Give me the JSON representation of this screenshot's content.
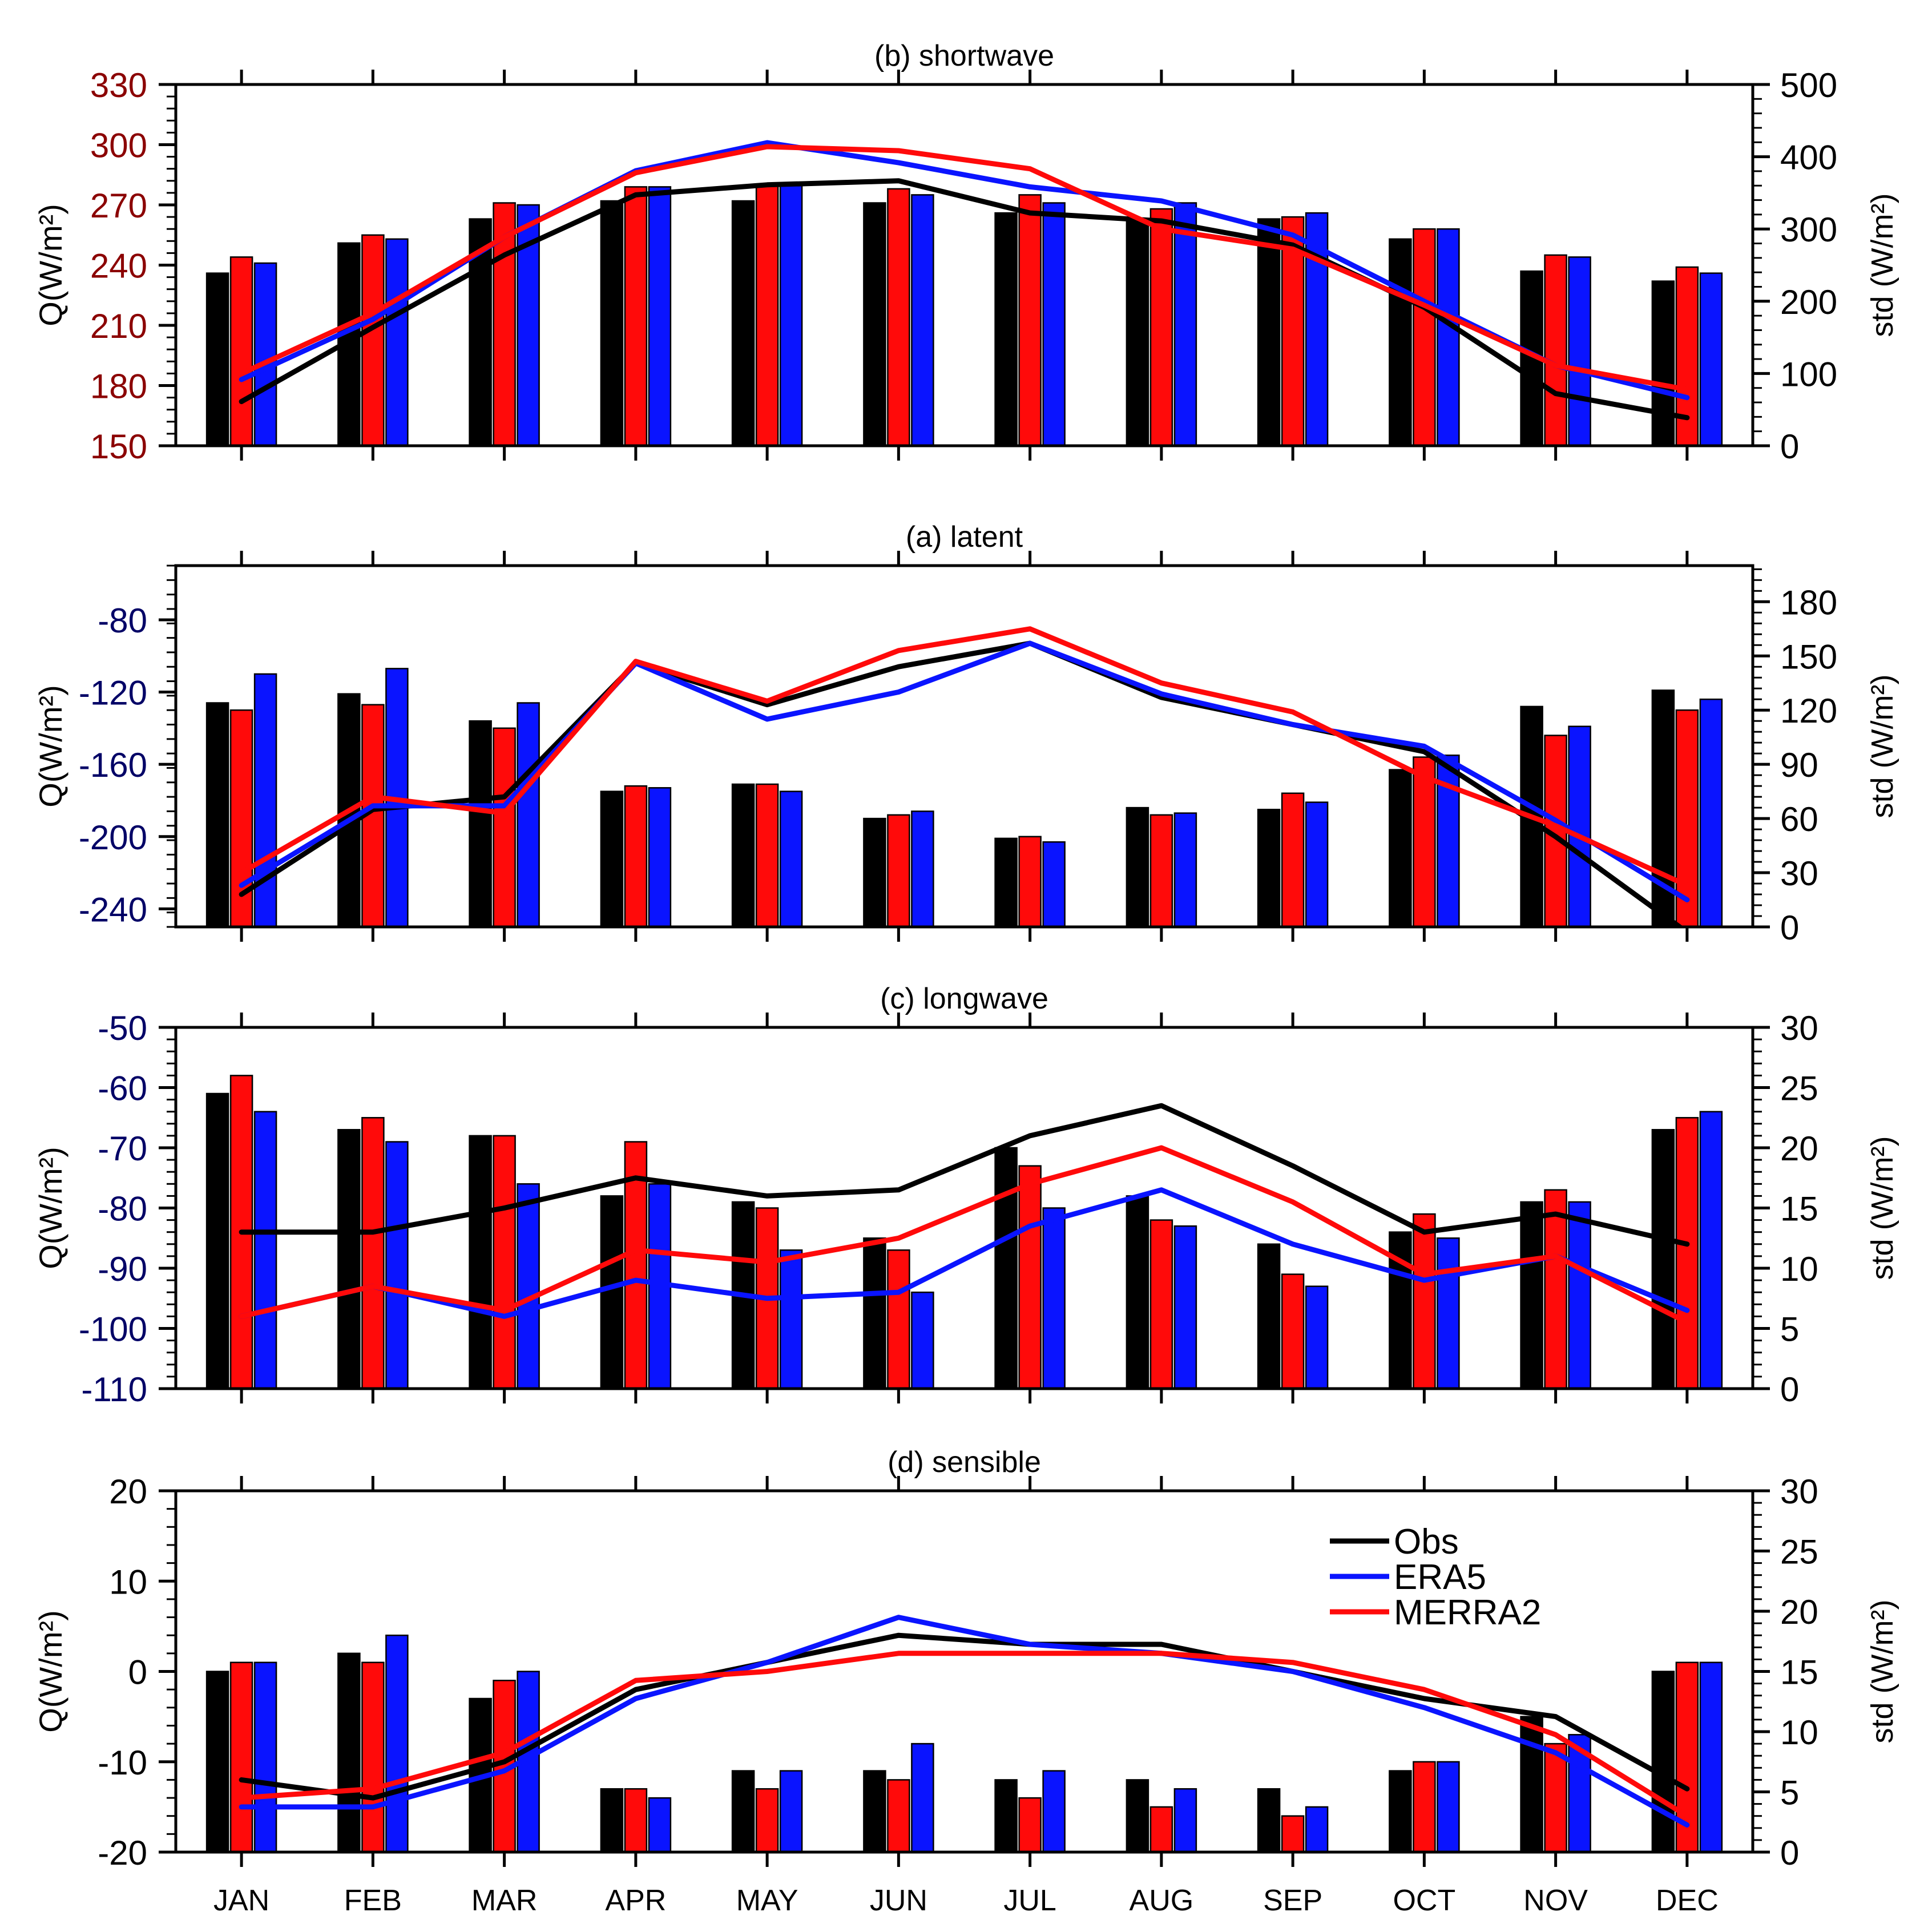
{
  "months": [
    "JAN",
    "FEB",
    "MAR",
    "APR",
    "MAY",
    "JUN",
    "JUL",
    "AUG",
    "SEP",
    "OCT",
    "NOV",
    "DEC"
  ],
  "legend": [
    {
      "label": "Obs",
      "color": "#000000"
    },
    {
      "label": "ERA5",
      "color": "#0a14ff"
    },
    {
      "label": "MERRA2",
      "color": "#ff0a0a"
    }
  ],
  "colors": {
    "obs": "#000000",
    "era5": "#0a14ff",
    "merra2": "#ff0a0a",
    "red_tick": "#8b0000",
    "blue_tick": "#000066"
  },
  "chart_data": [
    {
      "type": "bar+line",
      "title": "(b) shortwave",
      "ylabel_left": "Q(W/m²)",
      "ylabel_right": "std (W/m²)",
      "left_tick_color": "#8b0000",
      "ylim_left": [
        150,
        330
      ],
      "yticks_left": [
        150,
        180,
        210,
        240,
        270,
        300,
        330
      ],
      "ylim_right": [
        0,
        500
      ],
      "yticks_right": [
        0,
        100,
        200,
        300,
        400,
        500
      ],
      "bars_axis": "left",
      "lines_axis": "left",
      "bars": {
        "Obs": [
          236,
          251,
          263,
          272,
          272,
          271,
          266,
          262,
          263,
          253,
          237,
          232
        ],
        "MERRA2": [
          244,
          255,
          271,
          279,
          280,
          278,
          275,
          268,
          264,
          258,
          245,
          239
        ],
        "ERA5": [
          241,
          253,
          270,
          279,
          281,
          275,
          271,
          271,
          266,
          258,
          244,
          236
        ]
      },
      "lines": {
        "Obs": [
          172,
          209,
          245,
          275,
          280,
          282,
          266,
          262,
          250,
          219,
          176,
          164
        ],
        "ERA5": [
          183,
          213,
          254,
          287,
          301,
          291,
          279,
          272,
          255,
          222,
          190,
          174
        ],
        "MERRA2": [
          186,
          216,
          254,
          286,
          299,
          297,
          288,
          258,
          248,
          220,
          190,
          178
        ]
      }
    },
    {
      "type": "bar+line",
      "title": "(a) latent",
      "ylabel_left": "Q(W/m²)",
      "ylabel_right": "std (W/m²)",
      "left_tick_color": "#000066",
      "ylim_left": [
        -250,
        -50
      ],
      "yticks_left": [
        -240,
        -200,
        -160,
        -120,
        -80
      ],
      "ylim_right": [
        0,
        200
      ],
      "yticks_right": [
        0,
        30,
        60,
        90,
        120,
        150,
        180
      ],
      "bars_axis": "right",
      "lines_axis": "left",
      "bars": {
        "Obs": [
          124,
          129,
          114,
          75,
          79,
          60,
          49,
          66,
          65,
          87,
          122,
          131
        ],
        "MERRA2": [
          120,
          123,
          110,
          78,
          79,
          62,
          50,
          62,
          74,
          94,
          106,
          120
        ],
        "ERA5": [
          140,
          143,
          124,
          77,
          75,
          64,
          47,
          63,
          69,
          95,
          111,
          126
        ]
      },
      "lines": {
        "Obs": [
          -232,
          -185,
          -178,
          -104,
          -127,
          -106,
          -93,
          -123,
          -138,
          -153,
          -200,
          -253
        ],
        "ERA5": [
          -227,
          -183,
          -183,
          -104,
          -135,
          -120,
          -93,
          -121,
          -138,
          -150,
          -191,
          -235
        ],
        "MERRA2": [
          -220,
          -178,
          -187,
          -103,
          -125,
          -97,
          -85,
          -115,
          -131,
          -167,
          -194,
          -227
        ]
      }
    },
    {
      "type": "bar+line",
      "title": "(c) longwave",
      "ylabel_left": "Q(W/m²)",
      "ylabel_right": "std (W/m²)",
      "left_tick_color": "#000066",
      "ylim_left": [
        -110,
        -50
      ],
      "yticks_left": [
        -110,
        -100,
        -90,
        -80,
        -70,
        -60,
        -50
      ],
      "ylim_right": [
        0,
        30
      ],
      "yticks_right": [
        0,
        5,
        10,
        15,
        20,
        25,
        30
      ],
      "bars_axis": "left",
      "lines_axis": "left",
      "bars": {
        "Obs": [
          -61,
          -67,
          -68,
          -78,
          -79,
          -85,
          -70,
          -78,
          -86,
          -84,
          -79,
          -67
        ],
        "MERRA2": [
          -58,
          -65,
          -68,
          -69,
          -80,
          -87,
          -73,
          -82,
          -91,
          -81,
          -77,
          -65
        ],
        "ERA5": [
          -64,
          -69,
          -76,
          -76,
          -87,
          -94,
          -80,
          -83,
          -93,
          -85,
          -79,
          -64
        ]
      },
      "lines": {
        "Obs": [
          -84,
          -84,
          -80,
          -75,
          -78,
          -77,
          -68,
          -63,
          -73,
          -84,
          -81,
          -86
        ],
        "ERA5": [
          -98,
          -93,
          -98,
          -92,
          -95,
          -94,
          -83,
          -77,
          -86,
          -92,
          -88,
          -97
        ],
        "MERRA2": [
          -98,
          -93,
          -97,
          -87,
          -89,
          -85,
          -76,
          -70,
          -79,
          -91,
          -88,
          -99
        ]
      }
    },
    {
      "type": "bar+line",
      "title": "(d) sensible",
      "ylabel_left": "Q(W/m²)",
      "ylabel_right": "std (W/m²)",
      "left_tick_color": "#000000",
      "ylim_left": [
        -20,
        20
      ],
      "yticks_left": [
        -20,
        -10,
        0,
        10,
        20
      ],
      "ylim_right": [
        0,
        30
      ],
      "yticks_right": [
        0,
        5,
        10,
        15,
        20,
        25,
        30
      ],
      "bars_axis": "left",
      "lines_axis": "left",
      "bars": {
        "Obs": [
          0,
          2,
          -3,
          -13,
          -11,
          -11,
          -12,
          -12,
          -13,
          -11,
          -5,
          0
        ],
        "MERRA2": [
          1,
          1,
          -1,
          -13,
          -13,
          -12,
          -14,
          -15,
          -16,
          -10,
          -8,
          1
        ],
        "ERA5": [
          1,
          4,
          0,
          -14,
          -11,
          -8,
          -11,
          -13,
          -15,
          -10,
          -7,
          1
        ]
      },
      "lines": {
        "Obs": [
          -12,
          -14,
          -10,
          -2,
          1,
          4,
          3,
          3,
          0,
          -3,
          -5,
          -13
        ],
        "ERA5": [
          -15,
          -15,
          -11,
          -3,
          1,
          6,
          3,
          2,
          0,
          -4,
          -9,
          -17
        ],
        "MERRA2": [
          -14,
          -13,
          -9,
          -1,
          0,
          2,
          2,
          2,
          1,
          -2,
          -7,
          -16
        ]
      }
    }
  ]
}
